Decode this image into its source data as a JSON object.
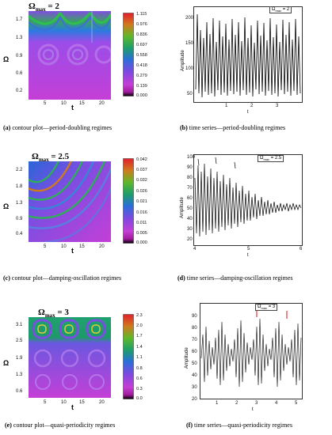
{
  "figure": {
    "panels": [
      {
        "id": "a",
        "kind": "contour",
        "title_base": "Ω",
        "title_sub": "max",
        "title_value": " = 2",
        "ylabel": "Ω",
        "xlabel": "t",
        "xticks": [
          "5",
          "10",
          "15",
          "20"
        ],
        "yticks": [
          "0.2",
          "0.6",
          "0.9",
          "1.3",
          "1.7"
        ],
        "colorbar": [
          "1.115",
          "0.976",
          "0.836",
          "0.697",
          "0.558",
          "0.418",
          "0.279",
          "0.139",
          "0.000"
        ],
        "caption_tag": "(a)",
        "caption_text": " contour plot—period-doubling regimes"
      },
      {
        "id": "b",
        "kind": "timeseries",
        "legend": "Ω",
        "legend_sub": "max",
        "legend_value": " = 2",
        "ylabel": "Amplitude",
        "xlabel": "t",
        "xticks": [
          "1",
          "2",
          "3"
        ],
        "yticks": [
          "50",
          "100",
          "150",
          "200"
        ],
        "caption_tag": "(b)",
        "caption_text": " time series—period-doubling regimes"
      },
      {
        "id": "c",
        "kind": "contour",
        "title_base": "Ω",
        "title_sub": "max",
        "title_value": " = 2.5",
        "ylabel": "Ω",
        "xlabel": "t",
        "xticks": [
          "5",
          "10",
          "15",
          "20"
        ],
        "yticks": [
          "0.4",
          "0.9",
          "1.3",
          "1.8",
          "2.2"
        ],
        "colorbar": [
          "0.042",
          "0.037",
          "0.032",
          "0.026",
          "0.021",
          "0.016",
          "0.011",
          "0.005",
          "0.000"
        ],
        "caption_tag": "(c)",
        "caption_text": " contour plot—damping-oscillation regimes"
      },
      {
        "id": "d",
        "kind": "timeseries",
        "legend": "Ω",
        "legend_sub": "max",
        "legend_value": " = 2.5",
        "ylabel": "Amplitude",
        "xlabel": "t",
        "xticks": [
          "4",
          "5",
          "6"
        ],
        "yticks": [
          "20",
          "30",
          "40",
          "50",
          "60",
          "70",
          "80",
          "90",
          "100"
        ],
        "caption_tag": "(d)",
        "caption_text": " time series—damping-oscillation regimes"
      },
      {
        "id": "e",
        "kind": "contour",
        "title_base": "Ω",
        "title_sub": "max",
        "title_value": " = 3",
        "ylabel": "Ω",
        "xlabel": "t",
        "xticks": [
          "5",
          "10",
          "15",
          "20"
        ],
        "yticks": [
          "0.6",
          "1.3",
          "1.9",
          "2.5",
          "3.1"
        ],
        "colorbar": [
          "2.3",
          "2.0",
          "1.7",
          "1.4",
          "1.1",
          "0.8",
          "0.6",
          "0.3",
          "0.0"
        ],
        "caption_tag": "(e)",
        "caption_text": " contour plot—quasi-periodicity regimes"
      },
      {
        "id": "f",
        "kind": "timeseries",
        "legend": "Ω",
        "legend_sub": "max",
        "legend_value": " = 3",
        "ylabel": "Amplitude",
        "xlabel": "t",
        "xticks": [
          "1",
          "2",
          "3",
          "4",
          "5"
        ],
        "yticks": [
          "20",
          "30",
          "40",
          "50",
          "60",
          "70",
          "80",
          "90"
        ],
        "caption_tag": "(f)",
        "caption_text": " time series—quasi-periodicity regimes"
      }
    ]
  }
}
